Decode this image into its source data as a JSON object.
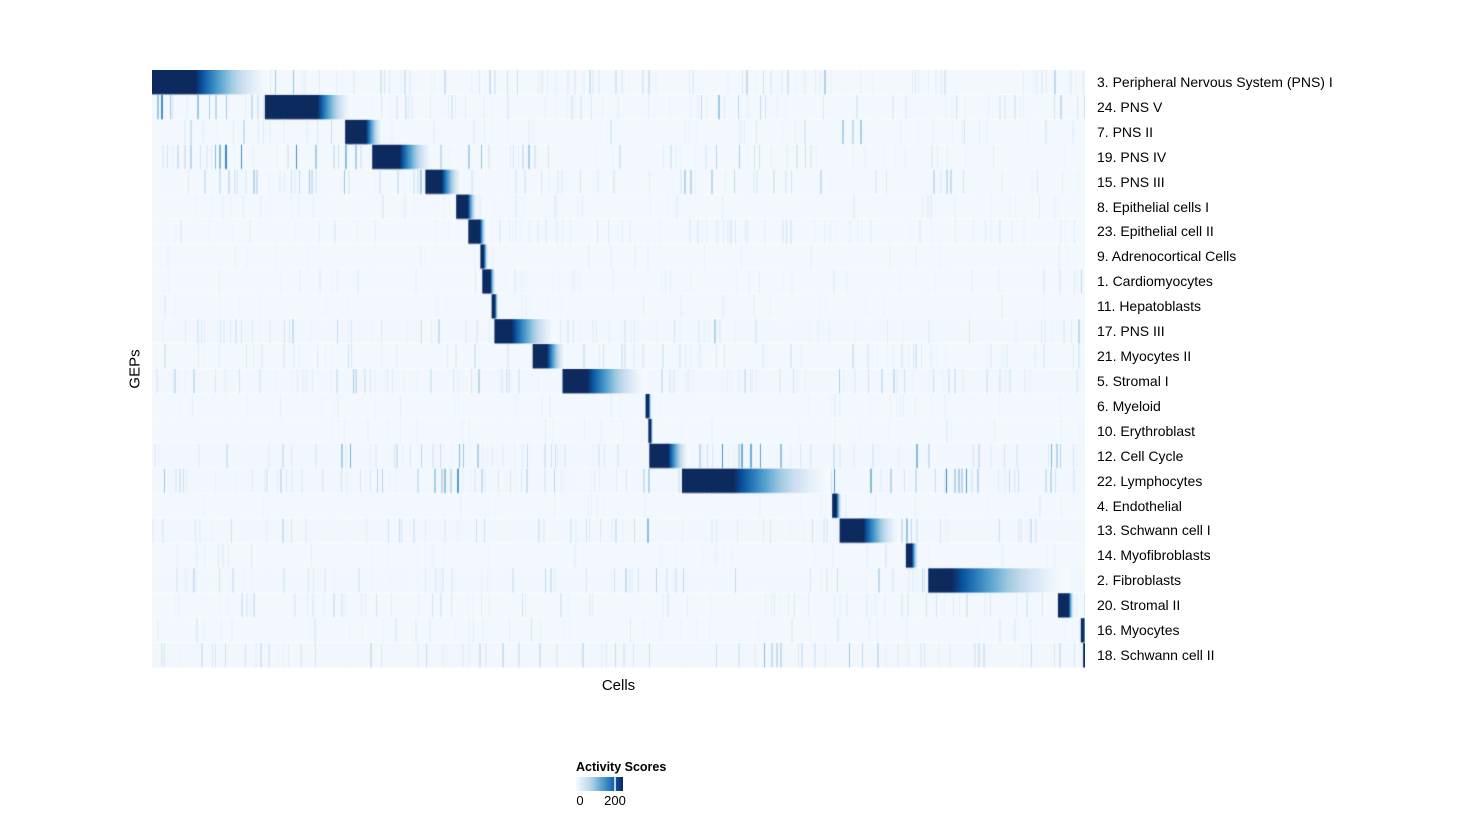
{
  "chart_data": {
    "type": "heatmap",
    "title": "",
    "xlabel": "Cells",
    "ylabel": "GEPs",
    "grid": false,
    "legend": {
      "title": "Activity Scores",
      "min_label": "0",
      "max_label": "200",
      "min_value": 0,
      "max_value": 200,
      "max_tick_fraction": 0.81,
      "position": "bottom-left"
    },
    "colormap": {
      "name": "Blues",
      "stops": [
        "#f7fbff",
        "#deebf7",
        "#c6dbef",
        "#9ecae1",
        "#6baed6",
        "#4292c6",
        "#2171b5",
        "#08519c",
        "#0d2a5f"
      ],
      "background": "#f4f8fd"
    },
    "n_rows": 24,
    "row_axis": "GEPs sorted so assigned-cell blocks form a diagonal; values are activity scores (0 to ~200+), block_start/block_end/fade_end are fractions of the cell axis",
    "rows": [
      {
        "label": "3. Peripheral Nervous System (PNS) I",
        "peak_activity": 200,
        "block_start": 0.0,
        "block_end": 0.046,
        "fade_end": 0.126,
        "base_noise": 0.18,
        "noise_zones": [
          [
            0.121,
            0.18,
            0.5
          ],
          [
            0.24,
            0.34,
            0.28
          ],
          [
            0.36,
            0.43,
            0.28
          ],
          [
            0.585,
            0.66,
            0.45
          ],
          [
            0.68,
            0.74,
            0.32
          ],
          [
            0.95,
            1.0,
            0.35
          ]
        ]
      },
      {
        "label": "24. PNS V",
        "peak_activity": 200,
        "block_start": 0.121,
        "block_end": 0.177,
        "fade_end": 0.214,
        "base_noise": 0.14,
        "noise_zones": [
          [
            0.0,
            0.12,
            0.6
          ],
          [
            0.585,
            0.67,
            0.42
          ],
          [
            0.68,
            0.74,
            0.38
          ],
          [
            0.95,
            1.0,
            0.28
          ]
        ]
      },
      {
        "label": "7. PNS II",
        "peak_activity": 200,
        "block_start": 0.207,
        "block_end": 0.229,
        "fade_end": 0.247,
        "base_noise": 0.1,
        "noise_zones": [
          [
            0.0,
            0.2,
            0.22
          ],
          [
            0.73,
            0.765,
            0.5
          ],
          [
            0.86,
            0.9,
            0.25
          ]
        ]
      },
      {
        "label": "19. PNS IV",
        "peak_activity": 200,
        "block_start": 0.236,
        "block_end": 0.265,
        "fade_end": 0.301,
        "base_noise": 0.14,
        "noise_zones": [
          [
            0.0,
            0.23,
            0.55
          ],
          [
            0.3,
            0.44,
            0.38
          ],
          [
            0.585,
            0.66,
            0.32
          ],
          [
            0.95,
            1.0,
            0.3
          ]
        ]
      },
      {
        "label": "15. PNS III",
        "peak_activity": 200,
        "block_start": 0.293,
        "block_end": 0.31,
        "fade_end": 0.332,
        "base_noise": 0.16,
        "noise_zones": [
          [
            0.0,
            0.29,
            0.32
          ],
          [
            0.566,
            0.625,
            0.7
          ],
          [
            0.68,
            0.73,
            0.28
          ],
          [
            0.83,
            0.9,
            0.28
          ]
        ]
      },
      {
        "label": "8. Epithelial cells I",
        "peak_activity": 200,
        "block_start": 0.326,
        "block_end": 0.338,
        "fade_end": 0.348,
        "base_noise": 0.09,
        "noise_zones": []
      },
      {
        "label": "23. Epithelial cell II",
        "peak_activity": 200,
        "block_start": 0.339,
        "block_end": 0.351,
        "fade_end": 0.358,
        "base_noise": 0.11,
        "noise_zones": [
          [
            0.57,
            0.73,
            0.22
          ]
        ]
      },
      {
        "label": "9. Adrenocortical Cells",
        "peak_activity": 200,
        "block_start": 0.352,
        "block_end": 0.355,
        "fade_end": 0.36,
        "base_noise": 0.07,
        "noise_zones": []
      },
      {
        "label": "1. Cardiomyocytes",
        "peak_activity": 200,
        "block_start": 0.354,
        "block_end": 0.362,
        "fade_end": 0.368,
        "base_noise": 0.09,
        "noise_zones": [
          [
            0.96,
            1.0,
            0.4
          ]
        ]
      },
      {
        "label": "11. Hepatoblasts",
        "peak_activity": 200,
        "block_start": 0.364,
        "block_end": 0.367,
        "fade_end": 0.371,
        "base_noise": 0.07,
        "noise_zones": []
      },
      {
        "label": "17. PNS III",
        "peak_activity": 200,
        "block_start": 0.367,
        "block_end": 0.385,
        "fade_end": 0.433,
        "base_noise": 0.2,
        "noise_zones": [
          [
            0.0,
            0.004,
            0.9
          ],
          [
            0.2,
            0.23,
            0.38
          ],
          [
            0.57,
            0.66,
            0.22
          ]
        ]
      },
      {
        "label": "21. Myocytes II",
        "peak_activity": 200,
        "block_start": 0.408,
        "block_end": 0.423,
        "fade_end": 0.443,
        "base_noise": 0.16,
        "noise_zones": [
          [
            0.994,
            0.998,
            0.85
          ]
        ]
      },
      {
        "label": "5. Stromal I",
        "peak_activity": 200,
        "block_start": 0.44,
        "block_end": 0.466,
        "fade_end": 0.53,
        "base_noise": 0.22,
        "noise_zones": [
          [
            0.0,
            0.003,
            0.6
          ],
          [
            0.2,
            0.23,
            0.42
          ],
          [
            0.73,
            0.745,
            0.5
          ],
          [
            0.83,
            0.86,
            0.42
          ]
        ]
      },
      {
        "label": "6. Myeloid",
        "peak_activity": 200,
        "block_start": 0.529,
        "block_end": 0.532,
        "fade_end": 0.535,
        "base_noise": 0.07,
        "noise_zones": []
      },
      {
        "label": "10. Erythroblast",
        "peak_activity": 200,
        "block_start": 0.532,
        "block_end": 0.534,
        "fade_end": 0.537,
        "base_noise": 0.07,
        "noise_zones": []
      },
      {
        "label": "12. Cell Cycle",
        "peak_activity": 200,
        "block_start": 0.533,
        "block_end": 0.553,
        "fade_end": 0.575,
        "base_noise": 0.22,
        "noise_zones": [
          [
            0.2,
            0.23,
            0.42
          ],
          [
            0.3,
            0.37,
            0.55
          ],
          [
            0.575,
            0.7,
            0.5
          ],
          [
            0.8,
            0.88,
            0.55
          ],
          [
            0.95,
            0.985,
            0.45
          ]
        ]
      },
      {
        "label": "22. Lymphocytes",
        "peak_activity": 200,
        "block_start": 0.568,
        "block_end": 0.623,
        "fade_end": 0.727,
        "base_noise": 0.28,
        "noise_zones": [
          [
            0.3,
            0.355,
            0.65
          ],
          [
            0.73,
            0.77,
            0.7
          ],
          [
            0.82,
            0.9,
            0.6
          ],
          [
            0.94,
            1.0,
            0.4
          ]
        ]
      },
      {
        "label": "4. Endothelial",
        "peak_activity": 200,
        "block_start": 0.729,
        "block_end": 0.733,
        "fade_end": 0.739,
        "base_noise": 0.07,
        "noise_zones": []
      },
      {
        "label": "13. Schwann cell I",
        "peak_activity": 200,
        "block_start": 0.737,
        "block_end": 0.762,
        "fade_end": 0.801,
        "base_noise": 0.22,
        "noise_zones": [
          [
            0.52,
            0.57,
            0.4
          ],
          [
            0.79,
            0.835,
            0.5
          ],
          [
            0.995,
            1.0,
            0.8
          ]
        ]
      },
      {
        "label": "14. Myofibroblasts",
        "peak_activity": 200,
        "block_start": 0.808,
        "block_end": 0.814,
        "fade_end": 0.821,
        "base_noise": 0.09,
        "noise_zones": []
      },
      {
        "label": "2. Fibroblasts",
        "peak_activity": 200,
        "block_start": 0.832,
        "block_end": 0.857,
        "fade_end": 0.982,
        "base_noise": 0.2,
        "noise_zones": [
          [
            0.53,
            0.57,
            0.4
          ],
          [
            0.97,
            0.974,
            0.5
          ]
        ]
      },
      {
        "label": "20. Stromal II",
        "peak_activity": 200,
        "block_start": 0.971,
        "block_end": 0.982,
        "fade_end": 0.988,
        "base_noise": 0.18,
        "noise_zones": []
      },
      {
        "label": "16. Myocytes",
        "peak_activity": 200,
        "block_start": 0.9955,
        "block_end": 0.9985,
        "fade_end": 1.0,
        "base_noise": 0.1,
        "noise_zones": [
          [
            0.354,
            0.367,
            0.42
          ],
          [
            0.406,
            0.42,
            0.42
          ]
        ]
      },
      {
        "label": "18. Schwann cell II",
        "peak_activity": 200,
        "block_start": 0.998,
        "block_end": 1.0,
        "fade_end": 1.0,
        "base_noise": 0.2,
        "noise_zones": [
          [
            0.0,
            0.22,
            0.3
          ],
          [
            0.59,
            0.68,
            0.32
          ],
          [
            0.74,
            0.77,
            0.4
          ]
        ]
      }
    ]
  }
}
